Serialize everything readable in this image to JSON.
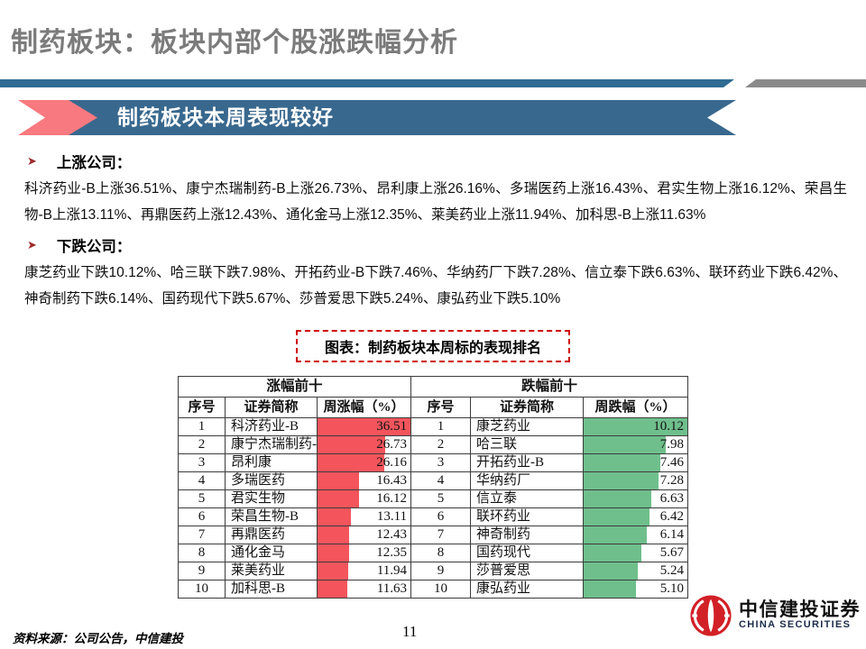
{
  "slide": {
    "title": "制药板块：板块内部个股涨跌幅分析",
    "banner": "制药板块本周表现较好",
    "sections": [
      {
        "heading": "上涨公司：",
        "body": "科济药业-B上涨36.51%、康宁杰瑞制药-B上涨26.73%、昂利康上涨26.16%、多瑞医药上涨16.43%、君实生物上涨16.12%、荣昌生物-B上涨13.11%、再鼎医药上涨12.43%、通化金马上涨12.35%、莱美药业上涨11.94%、加科思-B上涨11.63%"
      },
      {
        "heading": "下跌公司：",
        "body": "康芝药业下跌10.12%、哈三联下跌7.98%、开拓药业-B下跌7.46%、华纳药厂下跌7.28%、信立泰下跌6.63%、联环药业下跌6.42%、神奇制药下跌6.14%、国药现代下跌5.67%、莎普爱思下跌5.24%、康弘药业下跌5.10%"
      }
    ],
    "chart_caption": "图表：制药板块本周标的表现排名",
    "footer": {
      "source": "资料来源：公司公告，中信建投",
      "page": "11",
      "logo_cn": "中信建投证券",
      "logo_en": "CHINA SECURITIES"
    }
  },
  "chart_data": {
    "type": "table",
    "title": "图表：制药板块本周标的表现排名",
    "tables": [
      {
        "group_header": "涨幅前十",
        "columns": [
          "序号",
          "证券简称",
          "周涨幅（%）"
        ],
        "bar_color": "#f4555c",
        "rows": [
          {
            "rank": "1",
            "name": "科济药业-B",
            "value": 36.51
          },
          {
            "rank": "2",
            "name": "康宁杰瑞制药-B",
            "value": 26.73
          },
          {
            "rank": "3",
            "name": "昂利康",
            "value": 26.16
          },
          {
            "rank": "4",
            "name": "多瑞医药",
            "value": 16.43
          },
          {
            "rank": "5",
            "name": "君实生物",
            "value": 16.12
          },
          {
            "rank": "6",
            "name": "荣昌生物-B",
            "value": 13.11
          },
          {
            "rank": "7",
            "name": "再鼎医药",
            "value": 12.43
          },
          {
            "rank": "8",
            "name": "通化金马",
            "value": 12.35
          },
          {
            "rank": "9",
            "name": "莱美药业",
            "value": 11.94
          },
          {
            "rank": "10",
            "name": "加科思-B",
            "value": 11.63
          }
        ]
      },
      {
        "group_header": "跌幅前十",
        "columns": [
          "序号",
          "证券简称",
          "周跌幅（%）"
        ],
        "bar_color": "#6fbf8c",
        "rows": [
          {
            "rank": "1",
            "name": "康芝药业",
            "value": 10.12
          },
          {
            "rank": "2",
            "name": "哈三联",
            "value": 7.98
          },
          {
            "rank": "3",
            "name": "开拓药业-B",
            "value": 7.46
          },
          {
            "rank": "4",
            "name": "华纳药厂",
            "value": 7.28
          },
          {
            "rank": "5",
            "name": "信立泰",
            "value": 6.63
          },
          {
            "rank": "6",
            "name": "联环药业",
            "value": 6.42
          },
          {
            "rank": "7",
            "name": "神奇制药",
            "value": 6.14
          },
          {
            "rank": "8",
            "name": "国药现代",
            "value": 5.67
          },
          {
            "rank": "9",
            "name": "莎普爱思",
            "value": 5.24
          },
          {
            "rank": "10",
            "name": "康弘药业",
            "value": 5.1
          }
        ]
      }
    ]
  },
  "colors": {
    "title_gray": "#7b7b7b",
    "divider_blue": "#2f6b92",
    "divider_gray": "#8a8a8a",
    "banner_blue": "#39688e",
    "arrow_pink": "#f8797f",
    "bullet_red": "#9e2a2b",
    "dashed_red": "#cc0000",
    "up_bar": "#f4555c",
    "down_bar": "#6fbf8c",
    "logo_red": "#d22027"
  }
}
